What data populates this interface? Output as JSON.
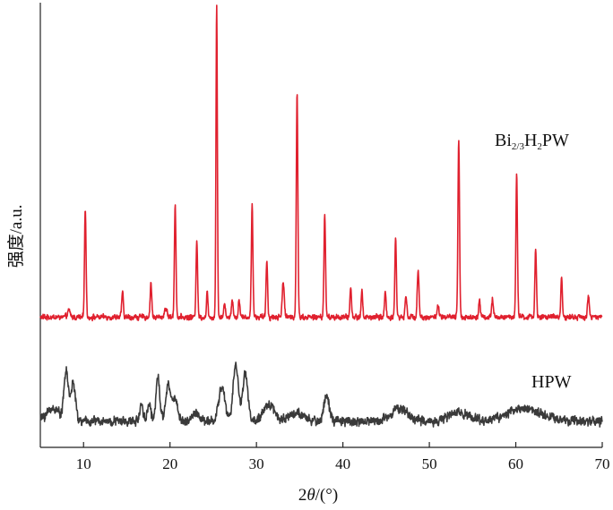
{
  "chart_data": {
    "type": "line",
    "xlabel_prefix": "2",
    "xlabel_theta": "θ",
    "xlabel_suffix": "/(°)",
    "ylabel": "强度/a.u.",
    "xlim": [
      5,
      70
    ],
    "x_ticks": [
      10,
      20,
      30,
      40,
      50,
      60,
      70
    ],
    "ylim": [
      0,
      100
    ],
    "grid": false,
    "series": [
      {
        "name_main": "Bi",
        "name_sub": "2/3",
        "name_mid": "H",
        "name_sub2": "2",
        "name_end": "PW",
        "color": "#e0202e",
        "baseline": 30,
        "noise": 0.9,
        "peaks": [
          [
            8.3,
            1.5,
            0.15
          ],
          [
            10.2,
            25,
            0.09
          ],
          [
            14.5,
            6,
            0.09
          ],
          [
            17.8,
            8,
            0.09
          ],
          [
            19.5,
            2,
            0.15
          ],
          [
            20.6,
            26,
            0.09
          ],
          [
            23.1,
            18,
            0.09
          ],
          [
            24.3,
            6,
            0.08
          ],
          [
            25.4,
            72,
            0.08
          ],
          [
            26.3,
            3,
            0.1
          ],
          [
            27.2,
            4,
            0.1
          ],
          [
            28.0,
            4,
            0.1
          ],
          [
            29.5,
            26,
            0.09
          ],
          [
            31.2,
            13,
            0.09
          ],
          [
            33.1,
            8,
            0.12
          ],
          [
            34.7,
            52,
            0.09
          ],
          [
            37.9,
            24,
            0.09
          ],
          [
            40.9,
            7,
            0.09
          ],
          [
            42.2,
            6,
            0.09
          ],
          [
            44.9,
            6,
            0.09
          ],
          [
            46.1,
            18,
            0.09
          ],
          [
            47.3,
            5,
            0.1
          ],
          [
            48.7,
            11,
            0.1
          ],
          [
            51.0,
            3,
            0.1
          ],
          [
            53.4,
            41,
            0.09
          ],
          [
            55.8,
            4,
            0.1
          ],
          [
            57.3,
            4,
            0.1
          ],
          [
            60.1,
            33,
            0.09
          ],
          [
            62.3,
            16,
            0.09
          ],
          [
            65.3,
            9,
            0.09
          ],
          [
            68.4,
            5,
            0.1
          ]
        ]
      },
      {
        "name_main": "HPW",
        "color": "#3a3a3a",
        "baseline": 6,
        "noise": 1.5,
        "peaks": [
          [
            6.5,
            3,
            0.8
          ],
          [
            8.0,
            11,
            0.25
          ],
          [
            8.8,
            9,
            0.25
          ],
          [
            16.7,
            4,
            0.2
          ],
          [
            17.6,
            4,
            0.2
          ],
          [
            18.6,
            11,
            0.2
          ],
          [
            19.8,
            8,
            0.3
          ],
          [
            20.6,
            5,
            0.3
          ],
          [
            23.0,
            2,
            0.4
          ],
          [
            26.0,
            8,
            0.35
          ],
          [
            27.6,
            13,
            0.3
          ],
          [
            28.7,
            11,
            0.3
          ],
          [
            31.5,
            4,
            0.6
          ],
          [
            34.5,
            2,
            0.8
          ],
          [
            38.1,
            6,
            0.3
          ],
          [
            46.5,
            3,
            1.0
          ],
          [
            53.5,
            2,
            1.2
          ],
          [
            61.0,
            3,
            2.0
          ]
        ]
      }
    ]
  }
}
